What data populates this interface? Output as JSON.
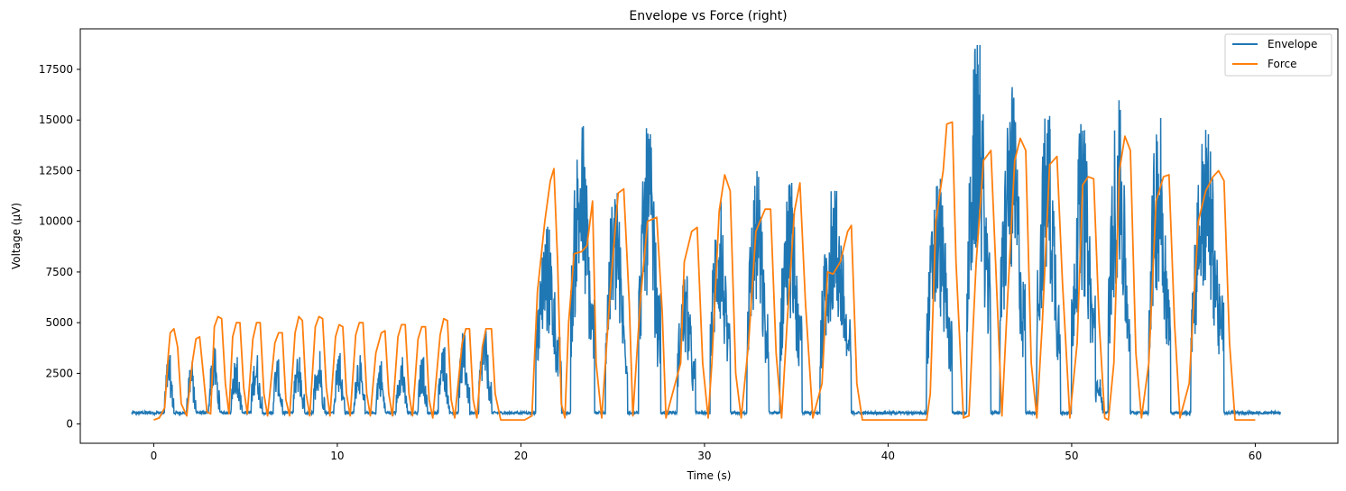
{
  "chart_data": {
    "type": "line",
    "title": "Envelope vs Force (right)",
    "xlabel": "Time (s)",
    "ylabel": "Voltage (μV)",
    "xlim": [
      -4,
      64.5
    ],
    "ylim": [
      -950,
      19500
    ],
    "xticks": [
      0,
      10,
      20,
      30,
      40,
      50,
      60
    ],
    "yticks": [
      0,
      2500,
      5000,
      7500,
      10000,
      12500,
      15000,
      17500
    ],
    "grid": false,
    "legend_position": "top-right",
    "series": [
      {
        "name": "Envelope",
        "color": "#1f77b4",
        "bursts": [
          {
            "t0": 0.6,
            "t1": 1.1,
            "peak": 3400
          },
          {
            "t0": 1.8,
            "t1": 2.3,
            "peak": 3100
          },
          {
            "t0": 3.0,
            "t1": 3.6,
            "peak": 3700
          },
          {
            "t0": 4.2,
            "t1": 4.8,
            "peak": 3300
          },
          {
            "t0": 5.3,
            "t1": 5.9,
            "peak": 3400
          },
          {
            "t0": 6.5,
            "t1": 7.0,
            "peak": 3200
          },
          {
            "t0": 7.6,
            "t1": 8.2,
            "peak": 3300
          },
          {
            "t0": 8.7,
            "t1": 9.3,
            "peak": 3600
          },
          {
            "t0": 9.8,
            "t1": 10.4,
            "peak": 3500
          },
          {
            "t0": 10.9,
            "t1": 11.5,
            "peak": 3400
          },
          {
            "t0": 12.1,
            "t1": 12.6,
            "peak": 3100
          },
          {
            "t0": 13.2,
            "t1": 13.8,
            "peak": 3300
          },
          {
            "t0": 14.4,
            "t1": 14.9,
            "peak": 3300
          },
          {
            "t0": 15.5,
            "t1": 16.1,
            "peak": 3800
          },
          {
            "t0": 16.6,
            "t1": 17.2,
            "peak": 4400
          },
          {
            "t0": 17.7,
            "t1": 18.4,
            "peak": 4600
          },
          {
            "t0": 20.8,
            "t1": 22.2,
            "peak": 9600
          },
          {
            "t0": 22.7,
            "t1": 24.0,
            "peak": 14700
          },
          {
            "t0": 24.6,
            "t1": 25.8,
            "peak": 11400
          },
          {
            "t0": 26.4,
            "t1": 27.6,
            "peak": 14300
          },
          {
            "t0": 28.5,
            "t1": 29.5,
            "peak": 7300
          },
          {
            "t0": 30.3,
            "t1": 31.4,
            "peak": 11000
          },
          {
            "t0": 32.3,
            "t1": 33.5,
            "peak": 12200
          },
          {
            "t0": 34.1,
            "t1": 35.3,
            "peak": 11900
          },
          {
            "t0": 36.3,
            "t1": 38.0,
            "peak": 11500
          },
          {
            "t0": 42.1,
            "t1": 43.5,
            "peak": 12100
          },
          {
            "t0": 44.3,
            "t1": 45.6,
            "peak": 18700
          },
          {
            "t0": 46.1,
            "t1": 47.5,
            "peak": 16100
          },
          {
            "t0": 48.1,
            "t1": 49.4,
            "peak": 15200
          },
          {
            "t0": 50.0,
            "t1": 51.3,
            "peak": 14500
          },
          {
            "t0": 51.2,
            "t1": 51.8,
            "peak": 2200
          },
          {
            "t0": 52.0,
            "t1": 53.2,
            "peak": 15500
          },
          {
            "t0": 54.2,
            "t1": 55.4,
            "peak": 15100
          },
          {
            "t0": 56.5,
            "t1": 58.3,
            "peak": 14300
          }
        ],
        "baseline": 550,
        "t_start": -1.2,
        "t_end": 61.4
      },
      {
        "name": "Force",
        "color": "#ff7f0e",
        "points": [
          [
            0.0,
            200
          ],
          [
            0.3,
            300
          ],
          [
            0.6,
            800
          ],
          [
            0.8,
            3500
          ],
          [
            0.9,
            4500
          ],
          [
            1.1,
            4700
          ],
          [
            1.3,
            3800
          ],
          [
            1.5,
            1000
          ],
          [
            1.8,
            400
          ],
          [
            2.1,
            3000
          ],
          [
            2.3,
            4200
          ],
          [
            2.5,
            4300
          ],
          [
            2.7,
            2500
          ],
          [
            2.9,
            600
          ],
          [
            3.1,
            500
          ],
          [
            3.3,
            4800
          ],
          [
            3.5,
            5300
          ],
          [
            3.7,
            5200
          ],
          [
            3.9,
            2000
          ],
          [
            4.1,
            500
          ],
          [
            4.3,
            4300
          ],
          [
            4.5,
            5000
          ],
          [
            4.7,
            5000
          ],
          [
            4.9,
            1800
          ],
          [
            5.1,
            500
          ],
          [
            5.4,
            4200
          ],
          [
            5.6,
            5000
          ],
          [
            5.8,
            5000
          ],
          [
            6.0,
            1500
          ],
          [
            6.2,
            400
          ],
          [
            6.6,
            4000
          ],
          [
            6.8,
            4500
          ],
          [
            7.0,
            4500
          ],
          [
            7.2,
            1200
          ],
          [
            7.4,
            400
          ],
          [
            7.7,
            4500
          ],
          [
            7.9,
            5300
          ],
          [
            8.1,
            5100
          ],
          [
            8.3,
            1500
          ],
          [
            8.5,
            400
          ],
          [
            8.8,
            4800
          ],
          [
            9.0,
            5300
          ],
          [
            9.2,
            5200
          ],
          [
            9.4,
            1800
          ],
          [
            9.6,
            400
          ],
          [
            9.9,
            4300
          ],
          [
            10.1,
            4900
          ],
          [
            10.3,
            4800
          ],
          [
            10.5,
            1500
          ],
          [
            10.7,
            400
          ],
          [
            11.0,
            4400
          ],
          [
            11.2,
            5000
          ],
          [
            11.4,
            5000
          ],
          [
            11.6,
            1500
          ],
          [
            11.8,
            400
          ],
          [
            12.1,
            3500
          ],
          [
            12.4,
            4500
          ],
          [
            12.6,
            4600
          ],
          [
            12.8,
            1500
          ],
          [
            13.0,
            400
          ],
          [
            13.3,
            4300
          ],
          [
            13.5,
            4900
          ],
          [
            13.7,
            4900
          ],
          [
            13.9,
            1500
          ],
          [
            14.1,
            400
          ],
          [
            14.4,
            4200
          ],
          [
            14.6,
            4800
          ],
          [
            14.8,
            4800
          ],
          [
            15.0,
            1200
          ],
          [
            15.2,
            300
          ],
          [
            15.6,
            4400
          ],
          [
            15.8,
            5200
          ],
          [
            16.0,
            5100
          ],
          [
            16.2,
            1200
          ],
          [
            16.4,
            300
          ],
          [
            16.8,
            4000
          ],
          [
            17.0,
            4700
          ],
          [
            17.2,
            4700
          ],
          [
            17.4,
            1200
          ],
          [
            17.6,
            300
          ],
          [
            17.9,
            3800
          ],
          [
            18.1,
            4700
          ],
          [
            18.4,
            4700
          ],
          [
            18.6,
            1500
          ],
          [
            18.9,
            200
          ],
          [
            20.2,
            200
          ],
          [
            20.6,
            400
          ],
          [
            20.9,
            6500
          ],
          [
            21.3,
            10000
          ],
          [
            21.6,
            12000
          ],
          [
            21.8,
            12600
          ],
          [
            22.0,
            8000
          ],
          [
            22.2,
            1000
          ],
          [
            22.4,
            300
          ],
          [
            22.6,
            5000
          ],
          [
            22.9,
            8400
          ],
          [
            23.3,
            8500
          ],
          [
            23.6,
            8800
          ],
          [
            23.9,
            11000
          ],
          [
            24.1,
            3000
          ],
          [
            24.4,
            300
          ],
          [
            24.9,
            7000
          ],
          [
            25.3,
            11400
          ],
          [
            25.6,
            11600
          ],
          [
            25.9,
            6000
          ],
          [
            26.1,
            400
          ],
          [
            26.5,
            6000
          ],
          [
            26.9,
            10000
          ],
          [
            27.4,
            10200
          ],
          [
            27.7,
            5500
          ],
          [
            27.9,
            300
          ],
          [
            28.7,
            3000
          ],
          [
            28.9,
            8000
          ],
          [
            29.3,
            9500
          ],
          [
            29.6,
            9700
          ],
          [
            29.9,
            3000
          ],
          [
            30.2,
            300
          ],
          [
            30.4,
            3000
          ],
          [
            30.8,
            10500
          ],
          [
            31.1,
            12300
          ],
          [
            31.4,
            11500
          ],
          [
            31.7,
            2500
          ],
          [
            32.0,
            300
          ],
          [
            32.4,
            4000
          ],
          [
            32.8,
            9500
          ],
          [
            33.3,
            10600
          ],
          [
            33.6,
            10600
          ],
          [
            33.9,
            3500
          ],
          [
            34.2,
            300
          ],
          [
            34.5,
            5000
          ],
          [
            34.9,
            10500
          ],
          [
            35.2,
            11900
          ],
          [
            35.5,
            6000
          ],
          [
            35.9,
            300
          ],
          [
            36.4,
            2000
          ],
          [
            36.7,
            7500
          ],
          [
            37.0,
            7400
          ],
          [
            37.4,
            8000
          ],
          [
            37.8,
            9500
          ],
          [
            38.0,
            9800
          ],
          [
            38.3,
            2000
          ],
          [
            38.6,
            200
          ],
          [
            42.1,
            200
          ],
          [
            42.3,
            1500
          ],
          [
            42.6,
            10000
          ],
          [
            43.0,
            12500
          ],
          [
            43.2,
            14800
          ],
          [
            43.5,
            14900
          ],
          [
            43.7,
            8000
          ],
          [
            44.1,
            300
          ],
          [
            44.4,
            400
          ],
          [
            44.8,
            8000
          ],
          [
            45.2,
            13000
          ],
          [
            45.6,
            13500
          ],
          [
            45.9,
            7000
          ],
          [
            46.2,
            400
          ],
          [
            46.5,
            6000
          ],
          [
            46.9,
            13000
          ],
          [
            47.2,
            14100
          ],
          [
            47.5,
            13500
          ],
          [
            47.8,
            3000
          ],
          [
            48.1,
            300
          ],
          [
            48.4,
            5000
          ],
          [
            48.8,
            12800
          ],
          [
            49.2,
            13200
          ],
          [
            49.5,
            7000
          ],
          [
            49.9,
            300
          ],
          [
            50.3,
            4000
          ],
          [
            50.6,
            11800
          ],
          [
            50.9,
            12200
          ],
          [
            51.2,
            12100
          ],
          [
            51.5,
            5000
          ],
          [
            51.8,
            300
          ],
          [
            52.0,
            200
          ],
          [
            52.3,
            3000
          ],
          [
            52.6,
            12500
          ],
          [
            52.9,
            14200
          ],
          [
            53.2,
            13500
          ],
          [
            53.5,
            3500
          ],
          [
            53.8,
            300
          ],
          [
            54.2,
            3000
          ],
          [
            54.6,
            11000
          ],
          [
            55.0,
            12200
          ],
          [
            55.3,
            12300
          ],
          [
            55.6,
            5000
          ],
          [
            55.9,
            300
          ],
          [
            56.4,
            2000
          ],
          [
            56.9,
            10000
          ],
          [
            57.3,
            11500
          ],
          [
            57.7,
            12200
          ],
          [
            58.0,
            12500
          ],
          [
            58.3,
            12000
          ],
          [
            58.6,
            4000
          ],
          [
            58.9,
            200
          ],
          [
            60.0,
            200
          ]
        ]
      }
    ]
  }
}
